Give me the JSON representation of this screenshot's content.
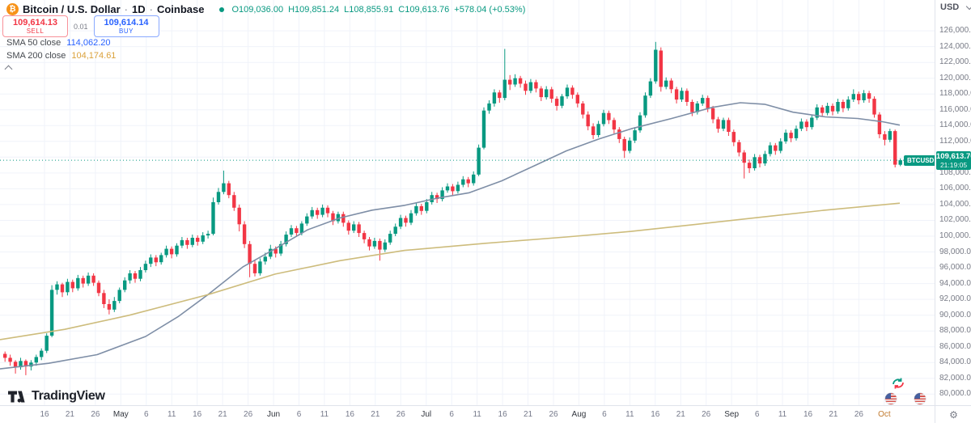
{
  "header": {
    "symbol_name": "Bitcoin / U.S. Dollar",
    "separator": "·",
    "interval": "1D",
    "exchange": "Coinbase",
    "market_status_color": "#089981",
    "ohlc": {
      "o_label": "O",
      "o": "109,036.00",
      "h_label": "H",
      "h": "109,851.24",
      "l_label": "L",
      "l": "108,855.91",
      "c_label": "C",
      "c": "109,613.76",
      "change": "+578.04 (+0.53%)",
      "color": "#089981"
    }
  },
  "trade_panel": {
    "sell_price": "109,614.13",
    "sell_label": "SELL",
    "spread": "0.01",
    "buy_price": "109,614.14",
    "buy_label": "BUY"
  },
  "indicators": [
    {
      "label": "SMA 50 close",
      "value": "114,062.20",
      "value_color": "#2962ff",
      "line_color": "#7e8ea6"
    },
    {
      "label": "SMA 200 close",
      "value": "104,174.61",
      "value_color": "#dba23c",
      "line_color": "#cdbc7c"
    }
  ],
  "price_axis": {
    "currency": "USD",
    "tick_min": 80000,
    "tick_max": 126000,
    "last_price": "109,613.76",
    "countdown": "21:19:05",
    "label_bg": "#089981"
  },
  "symbol_tag": "BTCUSD",
  "time_axis": {
    "labels": [
      "16",
      "21",
      "26",
      "May",
      "6",
      "11",
      "16",
      "21",
      "26",
      "Jun",
      "6",
      "11",
      "16",
      "21",
      "26",
      "Jul",
      "6",
      "11",
      "16",
      "21",
      "26",
      "Aug",
      "6",
      "11",
      "16",
      "21",
      "26",
      "Sep",
      "6",
      "11",
      "16",
      "21",
      "26",
      "Oct"
    ],
    "months": [
      "May",
      "Jun",
      "Jul",
      "Aug",
      "Sep",
      "Oct"
    ],
    "highlight_label": "Oct",
    "highlight_color": "#c17a2f"
  },
  "logo": {
    "text": "TradingView"
  },
  "chart_data": {
    "type": "candlestick",
    "title": "Bitcoin / U.S. Dollar · 1D · Coinbase",
    "ylabel": "USD",
    "ylim": [
      78600,
      129900
    ],
    "y_tick_step": 2000,
    "grid": true,
    "up_color": "#089981",
    "down_color": "#f23645",
    "grid_color": "#f0f3fa",
    "price_line": 109613.76,
    "candles": [
      [
        85100,
        85400,
        84100,
        84600
      ],
      [
        84600,
        85000,
        83600,
        84100
      ],
      [
        84100,
        84300,
        82600,
        83400
      ],
      [
        83400,
        84600,
        83100,
        84200
      ],
      [
        84200,
        84400,
        82400,
        83500
      ],
      [
        83500,
        84300,
        83000,
        84000
      ],
      [
        84000,
        85000,
        83600,
        84700
      ],
      [
        84700,
        85800,
        84300,
        85500
      ],
      [
        85500,
        87700,
        85200,
        87400
      ],
      [
        87400,
        93800,
        87200,
        93200
      ],
      [
        93200,
        94300,
        92600,
        93900
      ],
      [
        93900,
        94100,
        92300,
        92900
      ],
      [
        92900,
        94600,
        92500,
        94200
      ],
      [
        94200,
        94500,
        92900,
        93400
      ],
      [
        93400,
        95100,
        93100,
        94700
      ],
      [
        94700,
        95000,
        93500,
        94000
      ],
      [
        94000,
        95400,
        93700,
        95000
      ],
      [
        95000,
        95300,
        93700,
        94100
      ],
      [
        94100,
        94400,
        92400,
        92800
      ],
      [
        92800,
        93200,
        90900,
        91400
      ],
      [
        91400,
        92000,
        90100,
        90700
      ],
      [
        90700,
        92300,
        90400,
        91800
      ],
      [
        91800,
        93500,
        91500,
        93200
      ],
      [
        93200,
        94800,
        92900,
        94400
      ],
      [
        94400,
        95700,
        94000,
        95300
      ],
      [
        95300,
        95600,
        94100,
        94600
      ],
      [
        94600,
        96100,
        94300,
        95700
      ],
      [
        95700,
        96900,
        95400,
        96500
      ],
      [
        96500,
        97700,
        96100,
        97300
      ],
      [
        97300,
        97600,
        96200,
        96700
      ],
      [
        96700,
        97900,
        96400,
        97600
      ],
      [
        97600,
        98800,
        97300,
        98400
      ],
      [
        98400,
        98700,
        97200,
        97700
      ],
      [
        97700,
        99100,
        97400,
        98800
      ],
      [
        98800,
        99900,
        98500,
        99500
      ],
      [
        99500,
        99800,
        98400,
        98900
      ],
      [
        98900,
        100200,
        98600,
        99800
      ],
      [
        99800,
        100100,
        98800,
        99300
      ],
      [
        99300,
        100500,
        99000,
        100100
      ],
      [
        100100,
        100700,
        99700,
        100300
      ],
      [
        100300,
        104900,
        100100,
        104300
      ],
      [
        104300,
        106100,
        104000,
        105600
      ],
      [
        105600,
        108300,
        105300,
        106700
      ],
      [
        106700,
        107000,
        104800,
        105200
      ],
      [
        105200,
        105600,
        103200,
        103600
      ],
      [
        103600,
        104000,
        100600,
        101500
      ],
      [
        101500,
        101900,
        98500,
        99000
      ],
      [
        99000,
        99400,
        94800,
        96500
      ],
      [
        96500,
        97000,
        94900,
        95300
      ],
      [
        95300,
        97200,
        95000,
        96800
      ],
      [
        96800,
        97900,
        96400,
        97400
      ],
      [
        97400,
        98900,
        97100,
        98400
      ],
      [
        98400,
        98700,
        97300,
        97800
      ],
      [
        97800,
        99400,
        97500,
        99000
      ],
      [
        99000,
        100600,
        98700,
        100200
      ],
      [
        100200,
        101400,
        99900,
        101000
      ],
      [
        101000,
        101300,
        99900,
        100400
      ],
      [
        100400,
        101900,
        100100,
        101600
      ],
      [
        101600,
        102900,
        101300,
        102500
      ],
      [
        102500,
        103700,
        102200,
        103300
      ],
      [
        103300,
        103600,
        102200,
        102700
      ],
      [
        102700,
        104000,
        102400,
        103600
      ],
      [
        103600,
        103900,
        102400,
        102900
      ],
      [
        102900,
        103200,
        101400,
        101900
      ],
      [
        101900,
        103100,
        101600,
        102800
      ],
      [
        102800,
        103100,
        101200,
        101700
      ],
      [
        101700,
        102000,
        100200,
        100700
      ],
      [
        100700,
        101900,
        100400,
        101500
      ],
      [
        101500,
        101800,
        99900,
        100400
      ],
      [
        100400,
        100700,
        99100,
        99600
      ],
      [
        99600,
        99900,
        98200,
        98700
      ],
      [
        98700,
        99800,
        98400,
        99400
      ],
      [
        99400,
        99700,
        96900,
        98300
      ],
      [
        98300,
        99600,
        98000,
        99200
      ],
      [
        99200,
        100700,
        98900,
        100300
      ],
      [
        100300,
        101600,
        100000,
        101200
      ],
      [
        101200,
        102700,
        100900,
        102300
      ],
      [
        102300,
        102600,
        101200,
        101700
      ],
      [
        101700,
        103300,
        101400,
        102900
      ],
      [
        102900,
        104200,
        102600,
        103800
      ],
      [
        103800,
        104100,
        102700,
        103200
      ],
      [
        103200,
        104700,
        102900,
        104300
      ],
      [
        104300,
        105600,
        104000,
        105200
      ],
      [
        105200,
        105500,
        104200,
        104700
      ],
      [
        104700,
        106200,
        104400,
        105800
      ],
      [
        105800,
        106700,
        105500,
        106300
      ],
      [
        106300,
        106600,
        105200,
        105700
      ],
      [
        105700,
        106900,
        105400,
        106500
      ],
      [
        106500,
        107600,
        106200,
        107200
      ],
      [
        107200,
        107500,
        106200,
        106700
      ],
      [
        106700,
        108200,
        106400,
        107800
      ],
      [
        107800,
        111600,
        107600,
        111200
      ],
      [
        111200,
        116300,
        111000,
        115900
      ],
      [
        115900,
        117200,
        115500,
        116800
      ],
      [
        116800,
        118600,
        116400,
        118200
      ],
      [
        118200,
        118500,
        116900,
        117500
      ],
      [
        117500,
        123700,
        117200,
        119800
      ],
      [
        119800,
        120400,
        118500,
        119200
      ],
      [
        119200,
        120500,
        118900,
        120000
      ],
      [
        120000,
        120300,
        118800,
        119300
      ],
      [
        119300,
        119700,
        117900,
        118400
      ],
      [
        118400,
        119900,
        118100,
        119500
      ],
      [
        119500,
        119800,
        118200,
        118700
      ],
      [
        118700,
        119000,
        117100,
        117600
      ],
      [
        117600,
        119000,
        117300,
        118600
      ],
      [
        118600,
        118900,
        116900,
        117400
      ],
      [
        117400,
        117700,
        115900,
        116500
      ],
      [
        116500,
        118000,
        116200,
        117700
      ],
      [
        117700,
        119200,
        117400,
        118800
      ],
      [
        118800,
        119100,
        117400,
        117900
      ],
      [
        117900,
        118200,
        116300,
        116800
      ],
      [
        116800,
        117100,
        114900,
        115400
      ],
      [
        115400,
        115800,
        113400,
        113900
      ],
      [
        113900,
        114300,
        112300,
        112800
      ],
      [
        112800,
        114600,
        112500,
        114200
      ],
      [
        114200,
        116000,
        113900,
        115600
      ],
      [
        115600,
        115900,
        114200,
        114700
      ],
      [
        114700,
        115000,
        113000,
        113500
      ],
      [
        113500,
        113800,
        111800,
        112300
      ],
      [
        112300,
        112600,
        109900,
        110800
      ],
      [
        110800,
        112500,
        110500,
        112100
      ],
      [
        112100,
        113800,
        111800,
        113400
      ],
      [
        113400,
        115700,
        113100,
        115300
      ],
      [
        115300,
        118200,
        115000,
        117800
      ],
      [
        117800,
        120000,
        117500,
        119600
      ],
      [
        119600,
        124600,
        119300,
        123600
      ],
      [
        123500,
        123900,
        118300,
        118900
      ],
      [
        118900,
        120100,
        118600,
        119700
      ],
      [
        119700,
        120000,
        118100,
        118600
      ],
      [
        118600,
        118900,
        116800,
        117300
      ],
      [
        117300,
        118800,
        117000,
        118400
      ],
      [
        118400,
        118700,
        116500,
        117000
      ],
      [
        117000,
        117300,
        115200,
        115700
      ],
      [
        115700,
        117100,
        115400,
        116800
      ],
      [
        116800,
        117900,
        116500,
        117500
      ],
      [
        117500,
        117800,
        115700,
        116200
      ],
      [
        116200,
        116500,
        114300,
        114800
      ],
      [
        114800,
        115100,
        113100,
        113600
      ],
      [
        113600,
        115000,
        113300,
        114700
      ],
      [
        114700,
        115000,
        112700,
        113200
      ],
      [
        113200,
        113500,
        111400,
        111900
      ],
      [
        111900,
        112200,
        110100,
        110600
      ],
      [
        110600,
        110900,
        107300,
        109300
      ],
      [
        109300,
        109700,
        108000,
        108600
      ],
      [
        108600,
        110400,
        108300,
        110000
      ],
      [
        110000,
        110300,
        108700,
        109200
      ],
      [
        109200,
        110800,
        108900,
        110400
      ],
      [
        110400,
        111900,
        110100,
        111500
      ],
      [
        111500,
        111800,
        110300,
        110800
      ],
      [
        110800,
        112400,
        110500,
        112000
      ],
      [
        112000,
        113500,
        111700,
        113100
      ],
      [
        113100,
        113400,
        111900,
        112400
      ],
      [
        112400,
        114000,
        112100,
        113600
      ],
      [
        113600,
        114900,
        113300,
        114500
      ],
      [
        114500,
        114800,
        113300,
        113800
      ],
      [
        113800,
        115400,
        113500,
        115000
      ],
      [
        115000,
        116700,
        114700,
        116300
      ],
      [
        116300,
        116600,
        115100,
        115600
      ],
      [
        115600,
        116900,
        115300,
        116500
      ],
      [
        116500,
        116800,
        115300,
        115800
      ],
      [
        115800,
        117400,
        115500,
        117000
      ],
      [
        117000,
        117300,
        115700,
        116200
      ],
      [
        116200,
        117700,
        115900,
        117300
      ],
      [
        117300,
        118600,
        117000,
        118000
      ],
      [
        118000,
        118300,
        116700,
        117200
      ],
      [
        117200,
        118500,
        116900,
        118100
      ],
      [
        118100,
        118400,
        116900,
        117400
      ],
      [
        117400,
        117700,
        115000,
        115400
      ],
      [
        115400,
        115700,
        112400,
        112900
      ],
      [
        112900,
        113300,
        111500,
        112200
      ],
      [
        112200,
        113600,
        111900,
        113300
      ],
      [
        113300,
        113500,
        108700,
        109050
      ],
      [
        109036,
        109851,
        108856,
        109614
      ]
    ],
    "series": [
      {
        "name": "SMA 50",
        "color": "#7e8ea6",
        "points": [
          [
            0,
            83200
          ],
          [
            60,
            83900
          ],
          [
            120,
            85000
          ],
          [
            180,
            87300
          ],
          [
            220,
            89800
          ],
          [
            257,
            92600
          ],
          [
            300,
            96100
          ],
          [
            340,
            98400
          ],
          [
            380,
            100800
          ],
          [
            420,
            102300
          ],
          [
            460,
            103300
          ],
          [
            500,
            103900
          ],
          [
            540,
            104800
          ],
          [
            580,
            105500
          ],
          [
            620,
            107000
          ],
          [
            660,
            108900
          ],
          [
            700,
            110800
          ],
          [
            740,
            112300
          ],
          [
            780,
            113600
          ],
          [
            830,
            114900
          ],
          [
            880,
            116300
          ],
          [
            915,
            116900
          ],
          [
            945,
            116700
          ],
          [
            980,
            115700
          ],
          [
            1020,
            115100
          ],
          [
            1060,
            114900
          ],
          [
            1090,
            114500
          ],
          [
            1112,
            114062
          ]
        ]
      },
      {
        "name": "SMA 200",
        "color": "#cdbc7c",
        "points": [
          [
            0,
            86900
          ],
          [
            80,
            88200
          ],
          [
            160,
            90000
          ],
          [
            257,
            92600
          ],
          [
            340,
            95200
          ],
          [
            420,
            96900
          ],
          [
            500,
            98200
          ],
          [
            600,
            99100
          ],
          [
            700,
            99900
          ],
          [
            780,
            100600
          ],
          [
            860,
            101500
          ],
          [
            940,
            102400
          ],
          [
            1020,
            103300
          ],
          [
            1112,
            104175
          ]
        ]
      }
    ],
    "legend_position": "top-left"
  }
}
